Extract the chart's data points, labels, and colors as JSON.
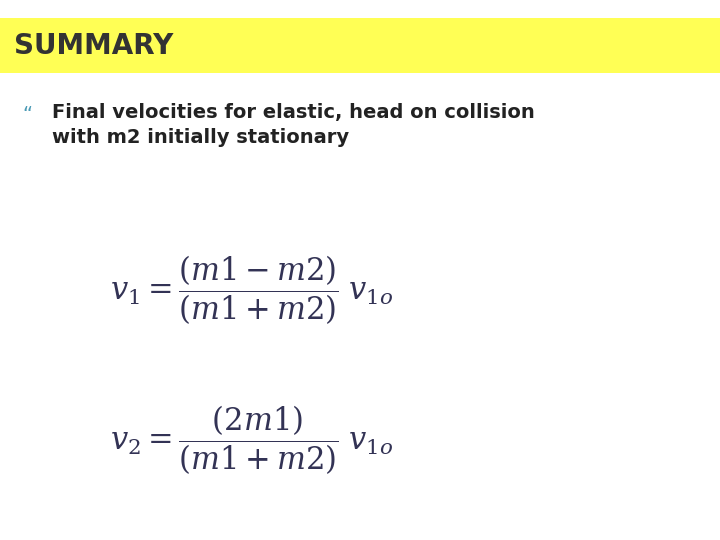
{
  "title": "SUMMARY",
  "title_bg_color": "#ffff55",
  "title_text_color": "#333333",
  "title_fontsize": 20,
  "title_font_weight": "bold",
  "bullet_char": "“",
  "bullet_color": "#4a9ab5",
  "bullet_text_line1": "Final velocities for elastic, head on collision",
  "bullet_text_line2": "with m2 initially stationary",
  "bullet_fontsize": 14,
  "eq_color": "#333355",
  "bg_color": "#ffffff",
  "fig_width": 7.2,
  "fig_height": 5.4,
  "dpi": 100
}
